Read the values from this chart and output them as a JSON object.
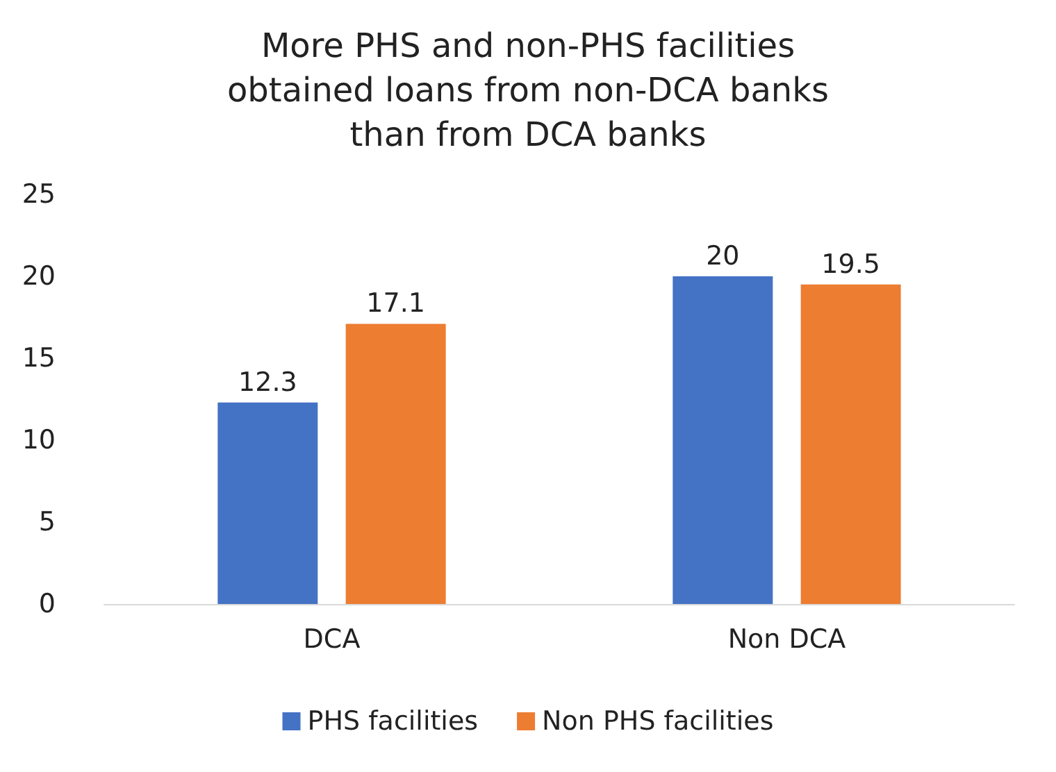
{
  "chart_data": {
    "type": "bar",
    "title": "More PHS and non-PHS facilities\nobtained loans from non-DCA banks\nthan from DCA banks",
    "categories": [
      "DCA",
      "Non DCA"
    ],
    "series": [
      {
        "name": "PHS facilities",
        "color": "#4472c4",
        "values": [
          12.3,
          20
        ]
      },
      {
        "name": "Non PHS facilities",
        "color": "#ed7d31",
        "values": [
          17.1,
          19.5
        ]
      }
    ],
    "ylim": [
      0,
      25
    ],
    "yticks": [
      0,
      5,
      10,
      15,
      20,
      25
    ],
    "grid": false,
    "legend": "bottom",
    "data_labels": true
  }
}
